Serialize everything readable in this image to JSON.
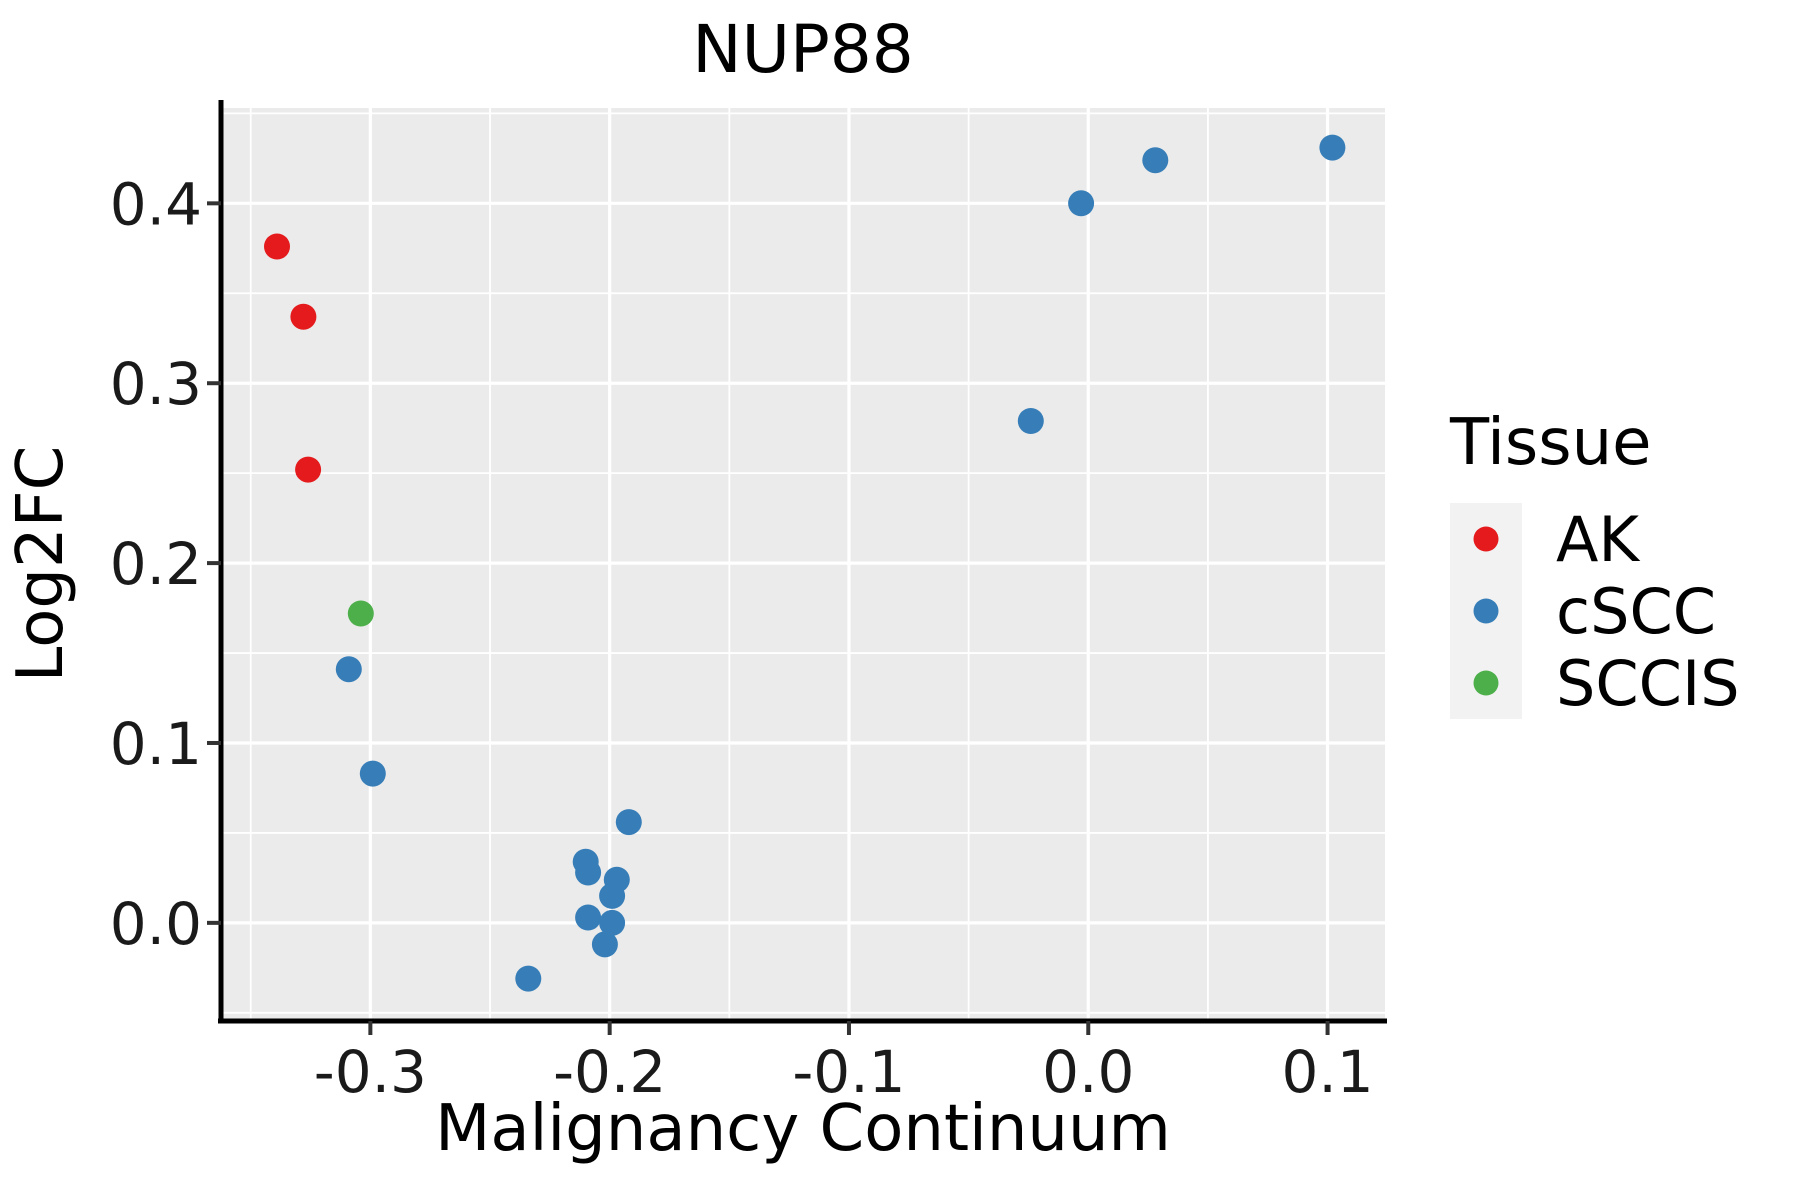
{
  "title": "NUP88",
  "chart_data": {
    "type": "scatter",
    "title": "NUP88",
    "xlabel": "Malignancy Continuum",
    "ylabel": "Log2FC",
    "xlim": [
      -0.362,
      0.124
    ],
    "ylim": [
      -0.054,
      0.453
    ],
    "grid": "major and minor white gridlines on gray panel",
    "legend_position": "right",
    "legend_title": "Tissue",
    "x_ticks": [
      {
        "value": -0.3,
        "label": "-0.3"
      },
      {
        "value": -0.2,
        "label": "-0.2"
      },
      {
        "value": -0.1,
        "label": "-0.1"
      },
      {
        "value": 0.0,
        "label": "0.0"
      },
      {
        "value": 0.1,
        "label": "0.1"
      }
    ],
    "y_ticks": [
      {
        "value": 0.0,
        "label": "0.0"
      },
      {
        "value": 0.1,
        "label": "0.1"
      },
      {
        "value": 0.2,
        "label": "0.2"
      },
      {
        "value": 0.3,
        "label": "0.3"
      },
      {
        "value": 0.4,
        "label": "0.4"
      }
    ],
    "x_minor_ticks": [
      -0.35,
      -0.25,
      -0.15,
      -0.05,
      0.05
    ],
    "y_minor_ticks": [
      -0.05,
      0.05,
      0.15,
      0.25,
      0.35,
      0.45
    ],
    "series": [
      {
        "name": "AK",
        "color": "#E41A1C",
        "points": [
          [
            -0.339,
            0.376
          ],
          [
            -0.328,
            0.337
          ],
          [
            -0.326,
            0.252
          ]
        ]
      },
      {
        "name": "cSCC",
        "color": "#377EB8",
        "points": [
          [
            -0.309,
            0.141
          ],
          [
            -0.299,
            0.083
          ],
          [
            -0.234,
            -0.031
          ],
          [
            -0.21,
            0.034
          ],
          [
            -0.209,
            0.028
          ],
          [
            -0.209,
            0.003
          ],
          [
            -0.202,
            -0.012
          ],
          [
            -0.199,
            0.015
          ],
          [
            -0.199,
            0.0
          ],
          [
            -0.197,
            0.024
          ],
          [
            -0.192,
            0.056
          ],
          [
            -0.024,
            0.279
          ],
          [
            -0.003,
            0.4
          ],
          [
            0.028,
            0.424
          ],
          [
            0.102,
            0.431
          ]
        ]
      },
      {
        "name": "SCCIS",
        "color": "#4DAF4A",
        "points": [
          [
            -0.304,
            0.172
          ]
        ]
      }
    ]
  },
  "legend": {
    "title": "Tissue",
    "items": [
      {
        "label": "AK",
        "color": "#E41A1C"
      },
      {
        "label": "cSCC",
        "color": "#377EB8"
      },
      {
        "label": "SCCIS",
        "color": "#4DAF4A"
      }
    ]
  },
  "colors": {
    "panel_background": "#EBEBEB",
    "grid_line": "#FFFFFF",
    "spine": "#000000",
    "tick_mark": "#333333",
    "legend_key_background": "#F2F2F2",
    "page_background": "#FFFFFF"
  }
}
